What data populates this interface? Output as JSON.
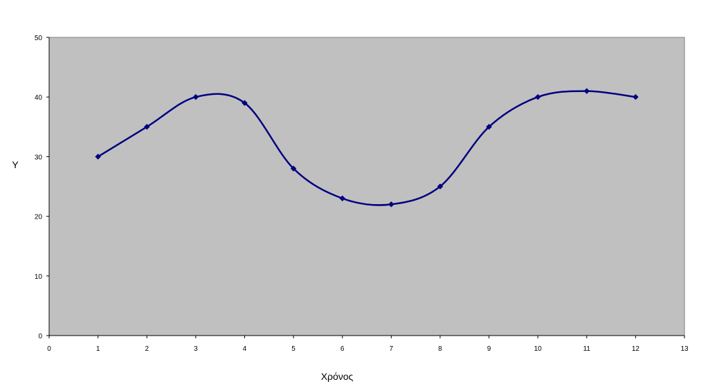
{
  "chart_data": {
    "type": "line",
    "title": "",
    "xlabel": "Χρόνος",
    "ylabel": "Y",
    "xlim": [
      0,
      13
    ],
    "ylim": [
      0,
      50
    ],
    "x_ticks": [
      0,
      1,
      2,
      3,
      4,
      5,
      6,
      7,
      8,
      9,
      10,
      11,
      12,
      13
    ],
    "y_ticks": [
      0,
      10,
      20,
      30,
      40,
      50
    ],
    "grid": false,
    "smoothed": true,
    "legend": "none",
    "plot_background": "#c0c0c0",
    "series": [
      {
        "color": "#000080",
        "marker": "diamond",
        "x": [
          1,
          2,
          3,
          4,
          5,
          6,
          7,
          8,
          9,
          10,
          11,
          12
        ],
        "y": [
          30,
          35,
          40,
          39,
          28,
          23,
          22,
          25,
          35,
          40,
          41,
          40
        ]
      }
    ]
  }
}
